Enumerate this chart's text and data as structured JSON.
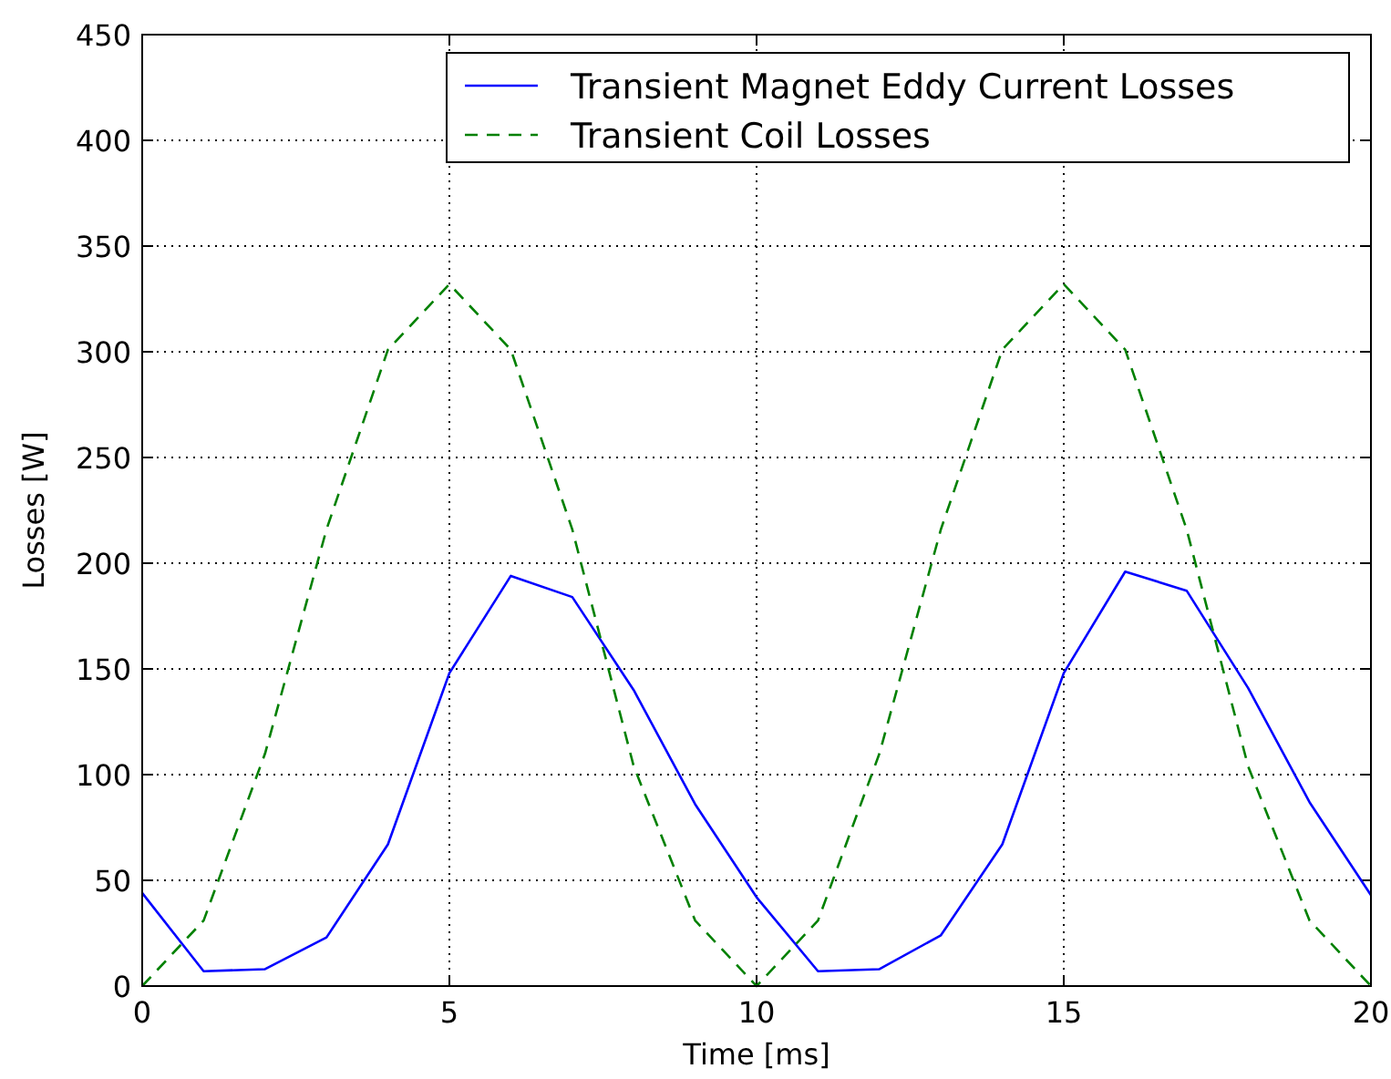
{
  "chart_data": {
    "type": "line",
    "xlabel": "Time [ms]",
    "ylabel": "Losses [W]",
    "x": [
      0,
      1,
      2,
      3,
      4,
      5,
      6,
      7,
      8,
      9,
      10,
      11,
      12,
      13,
      14,
      15,
      16,
      17,
      18,
      19,
      20
    ],
    "series": [
      {
        "name": "Transient Magnet Eddy Current Losses",
        "color": "#0000ff",
        "line_style": "solid",
        "values": [
          44,
          7,
          8,
          23,
          67,
          148,
          194,
          184,
          140,
          86,
          42,
          7,
          8,
          24,
          67,
          148,
          196,
          187,
          141,
          87,
          43
        ]
      },
      {
        "name": "Transient Coil Losses",
        "color": "#008000",
        "line_style": "dashed",
        "values": [
          0,
          31,
          110,
          216,
          301,
          332,
          301,
          216,
          104,
          31,
          0,
          31,
          110,
          216,
          301,
          332,
          301,
          216,
          104,
          31,
          0
        ]
      }
    ],
    "xlim": [
      0,
      20
    ],
    "xticks": [
      0,
      5,
      10,
      15,
      20
    ],
    "ylim": [
      0,
      450
    ],
    "yticks": [
      0,
      50,
      100,
      150,
      200,
      250,
      300,
      350,
      400,
      450
    ],
    "grid": true,
    "legend": "top right",
    "marker": "none"
  }
}
